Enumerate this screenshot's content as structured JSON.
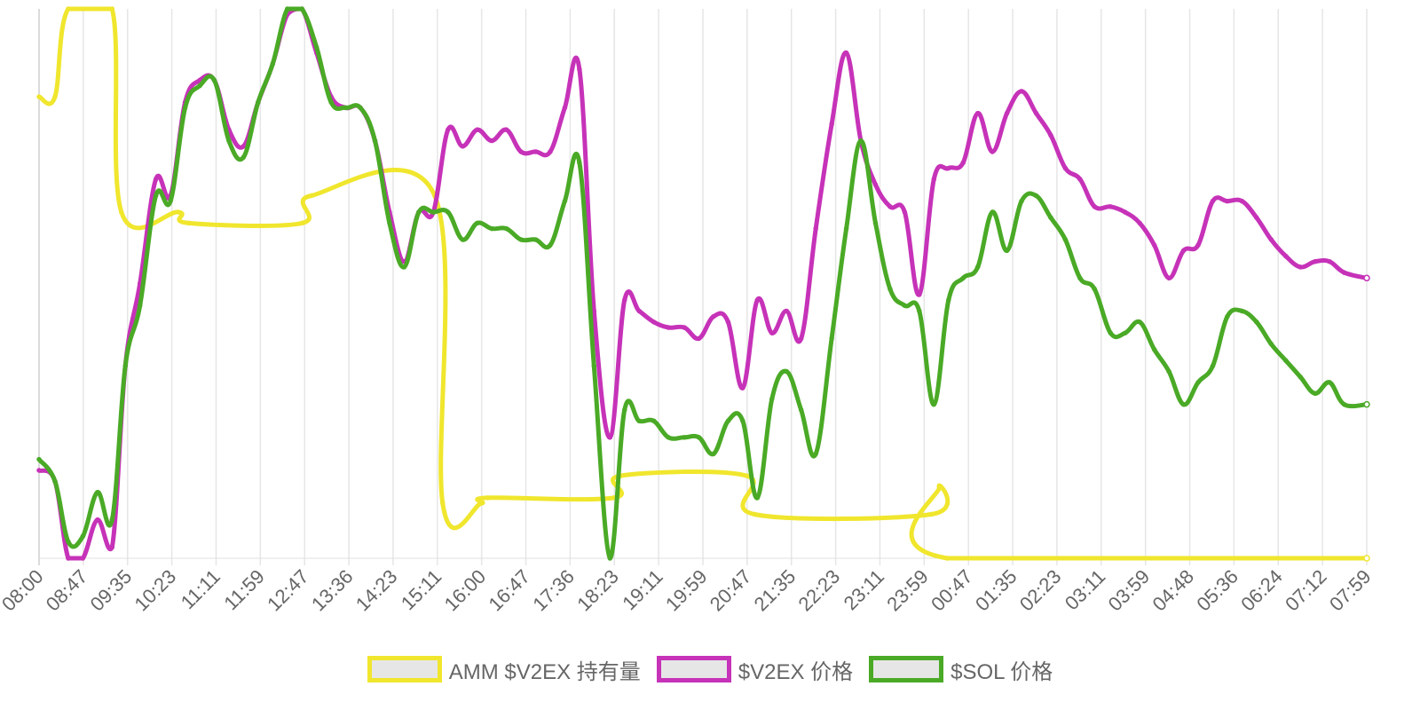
{
  "chart_data": {
    "type": "line",
    "title": "",
    "xlabel": "",
    "ylabel": "",
    "grid": true,
    "legend_position": "bottom",
    "x_tick_labels": [
      "08:00",
      "08:47",
      "09:35",
      "10:23",
      "11:11",
      "11:59",
      "12:47",
      "13:36",
      "14:23",
      "15:11",
      "16:00",
      "16:47",
      "17:36",
      "18:23",
      "19:11",
      "19:59",
      "20:47",
      "21:35",
      "22:23",
      "23:11",
      "23:59",
      "00:47",
      "01:35",
      "02:23",
      "03:11",
      "03:59",
      "04:48",
      "05:36",
      "06:24",
      "07:12",
      "07:59"
    ],
    "ylim": [
      0,
      100
    ],
    "series": [
      {
        "name": "AMM $V2EX 持有量",
        "color": "#f0e62d",
        "points": [
          [
            0,
            84
          ],
          [
            1.2,
            84
          ],
          [
            2.2,
            100
          ],
          [
            5.5,
            100
          ],
          [
            6.2,
            63
          ],
          [
            10.5,
            63
          ],
          [
            11.3,
            61
          ],
          [
            19.8,
            61
          ],
          [
            20.5,
            66
          ],
          [
            29.8,
            66
          ],
          [
            30.4,
            10
          ],
          [
            33.3,
            10
          ],
          [
            33.8,
            11
          ],
          [
            43.3,
            11
          ],
          [
            43.8,
            15
          ],
          [
            53.3,
            15
          ],
          [
            53.9,
            8
          ],
          [
            67.2,
            8
          ],
          [
            67.8,
            13
          ],
          [
            68.4,
            0
          ],
          [
            100,
            0
          ]
        ]
      },
      {
        "name": "$V2EX 价格",
        "color": "#c632b8",
        "points": [
          [
            0,
            16
          ],
          [
            1.2,
            14
          ],
          [
            2.2,
            0
          ],
          [
            3.3,
            0
          ],
          [
            4.4,
            7
          ],
          [
            5.5,
            2
          ],
          [
            6.5,
            35
          ],
          [
            7.6,
            50
          ],
          [
            8.8,
            69
          ],
          [
            9.9,
            66
          ],
          [
            11.0,
            83
          ],
          [
            12.1,
            87
          ],
          [
            13.2,
            87
          ],
          [
            14.3,
            78
          ],
          [
            15.4,
            75
          ],
          [
            16.5,
            83
          ],
          [
            17.6,
            90
          ],
          [
            18.7,
            99
          ],
          [
            19.8,
            100
          ],
          [
            20.9,
            92
          ],
          [
            22.0,
            84
          ],
          [
            23.1,
            82
          ],
          [
            24.2,
            82
          ],
          [
            25.3,
            76
          ],
          [
            26.4,
            63
          ],
          [
            27.5,
            54
          ],
          [
            28.6,
            63
          ],
          [
            29.7,
            63
          ],
          [
            30.8,
            78
          ],
          [
            31.9,
            75
          ],
          [
            33.0,
            78
          ],
          [
            34.1,
            76
          ],
          [
            35.2,
            78
          ],
          [
            36.3,
            74
          ],
          [
            37.4,
            74
          ],
          [
            38.5,
            74
          ],
          [
            39.6,
            82
          ],
          [
            40.7,
            89
          ],
          [
            41.8,
            45
          ],
          [
            43.0,
            22
          ],
          [
            44.1,
            47
          ],
          [
            45.2,
            45
          ],
          [
            46.3,
            43
          ],
          [
            47.4,
            42
          ],
          [
            48.6,
            42
          ],
          [
            49.7,
            40
          ],
          [
            50.8,
            44
          ],
          [
            51.9,
            43
          ],
          [
            53.0,
            31
          ],
          [
            54.1,
            47
          ],
          [
            55.2,
            41
          ],
          [
            56.3,
            45
          ],
          [
            57.4,
            40
          ],
          [
            58.5,
            60
          ],
          [
            59.7,
            79
          ],
          [
            60.8,
            92
          ],
          [
            61.9,
            76
          ],
          [
            63.0,
            68
          ],
          [
            64.1,
            64
          ],
          [
            65.2,
            63
          ],
          [
            66.3,
            48
          ],
          [
            67.4,
            69
          ],
          [
            68.5,
            71
          ],
          [
            69.6,
            72
          ],
          [
            70.7,
            81
          ],
          [
            71.8,
            74
          ],
          [
            72.9,
            81
          ],
          [
            74.0,
            85
          ],
          [
            75.1,
            81
          ],
          [
            76.2,
            77
          ],
          [
            77.3,
            71
          ],
          [
            78.4,
            69
          ],
          [
            79.5,
            64
          ],
          [
            80.7,
            64
          ],
          [
            81.8,
            63
          ],
          [
            82.9,
            61
          ],
          [
            84.0,
            57
          ],
          [
            85.1,
            51
          ],
          [
            86.2,
            56
          ],
          [
            87.3,
            57
          ],
          [
            88.4,
            65
          ],
          [
            89.5,
            65
          ],
          [
            90.6,
            65
          ],
          [
            91.7,
            62
          ],
          [
            92.8,
            58
          ],
          [
            93.9,
            55
          ],
          [
            95.0,
            53
          ],
          [
            96.1,
            54
          ],
          [
            97.2,
            54
          ],
          [
            98.3,
            52
          ],
          [
            100,
            51
          ]
        ]
      },
      {
        "name": "$SOL 价格",
        "color": "#4aaa26",
        "points": [
          [
            0,
            18
          ],
          [
            1.2,
            14
          ],
          [
            2.2,
            3
          ],
          [
            3.3,
            4
          ],
          [
            4.4,
            12
          ],
          [
            5.5,
            7
          ],
          [
            6.5,
            35
          ],
          [
            7.6,
            46
          ],
          [
            8.8,
            66
          ],
          [
            9.9,
            65
          ],
          [
            11.0,
            82
          ],
          [
            12.1,
            86
          ],
          [
            13.2,
            87
          ],
          [
            14.3,
            76
          ],
          [
            15.4,
            73
          ],
          [
            16.5,
            83
          ],
          [
            17.6,
            90
          ],
          [
            18.7,
            100
          ],
          [
            19.8,
            100
          ],
          [
            20.9,
            93
          ],
          [
            22.0,
            83
          ],
          [
            23.1,
            82
          ],
          [
            24.2,
            82
          ],
          [
            25.3,
            76
          ],
          [
            26.4,
            61
          ],
          [
            27.5,
            53
          ],
          [
            28.6,
            63
          ],
          [
            29.7,
            63
          ],
          [
            30.8,
            63
          ],
          [
            31.9,
            58
          ],
          [
            33.0,
            61
          ],
          [
            34.1,
            60
          ],
          [
            35.2,
            60
          ],
          [
            36.3,
            58
          ],
          [
            37.4,
            58
          ],
          [
            38.5,
            57
          ],
          [
            39.6,
            65
          ],
          [
            40.7,
            72
          ],
          [
            41.8,
            35
          ],
          [
            43.0,
            0
          ],
          [
            44.1,
            27
          ],
          [
            45.2,
            25
          ],
          [
            46.3,
            25
          ],
          [
            47.4,
            22
          ],
          [
            48.6,
            22
          ],
          [
            49.7,
            22
          ],
          [
            50.8,
            19
          ],
          [
            51.9,
            25
          ],
          [
            53.0,
            25
          ],
          [
            54.1,
            11
          ],
          [
            55.2,
            29
          ],
          [
            56.3,
            34
          ],
          [
            57.4,
            27
          ],
          [
            58.5,
            19
          ],
          [
            59.7,
            40
          ],
          [
            60.8,
            60
          ],
          [
            61.9,
            76
          ],
          [
            63.0,
            61
          ],
          [
            64.1,
            49
          ],
          [
            65.2,
            46
          ],
          [
            66.3,
            45
          ],
          [
            67.4,
            28
          ],
          [
            68.5,
            47
          ],
          [
            69.6,
            51
          ],
          [
            70.7,
            53
          ],
          [
            71.8,
            63
          ],
          [
            72.9,
            56
          ],
          [
            74.0,
            65
          ],
          [
            75.1,
            66
          ],
          [
            76.2,
            62
          ],
          [
            77.3,
            58
          ],
          [
            78.4,
            51
          ],
          [
            79.5,
            49
          ],
          [
            80.7,
            41
          ],
          [
            81.8,
            41
          ],
          [
            82.9,
            43
          ],
          [
            84.0,
            38
          ],
          [
            85.1,
            34
          ],
          [
            86.2,
            28
          ],
          [
            87.3,
            32
          ],
          [
            88.4,
            35
          ],
          [
            89.5,
            44
          ],
          [
            90.6,
            45
          ],
          [
            91.7,
            43
          ],
          [
            92.8,
            39
          ],
          [
            93.9,
            36
          ],
          [
            95.0,
            33
          ],
          [
            96.1,
            30
          ],
          [
            97.2,
            32
          ],
          [
            98.3,
            28
          ],
          [
            100,
            28
          ]
        ]
      }
    ]
  },
  "legend": {
    "items": [
      {
        "label": "AMM $V2EX 持有量",
        "color": "#f0e62d"
      },
      {
        "label": "$V2EX 价格",
        "color": "#c632b8"
      },
      {
        "label": "$SOL 价格",
        "color": "#4aaa26"
      }
    ]
  }
}
